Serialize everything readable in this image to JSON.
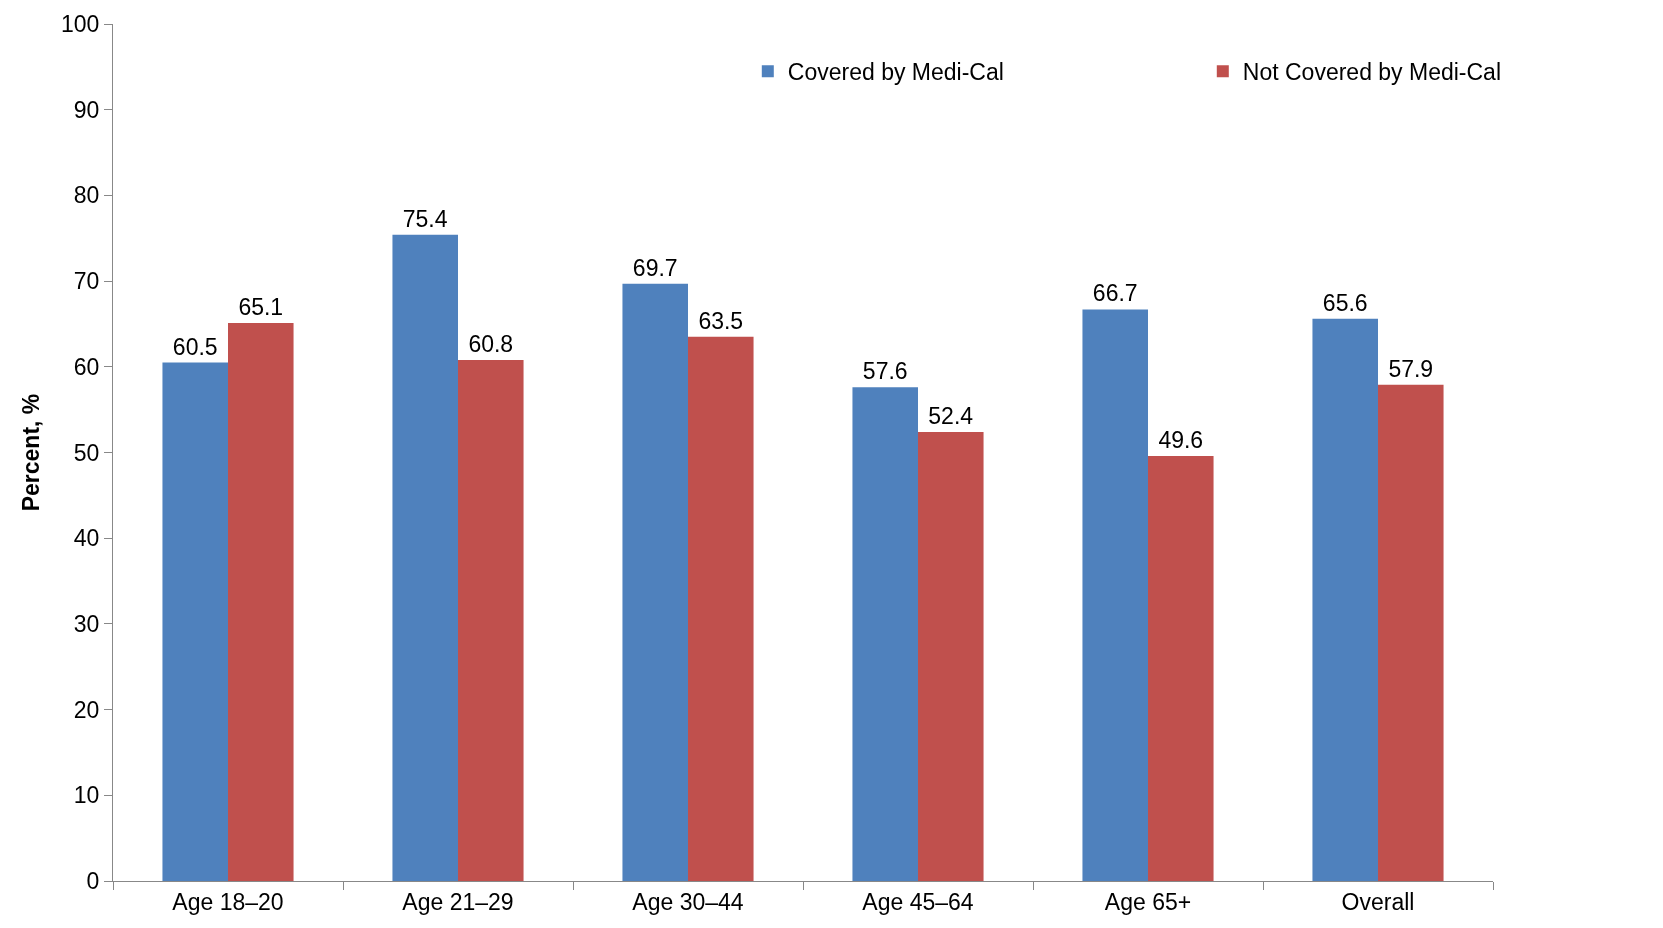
{
  "chart_data": {
    "type": "bar",
    "ylabel": "Percent, %",
    "categories": [
      "Age 18–20",
      "Age 21–29",
      "Age 30–44",
      "Age 45–64",
      "Age 65+",
      "Overall"
    ],
    "series": [
      {
        "name": "Covered by Medi-Cal",
        "color": "#4f81bd",
        "values": [
          60.5,
          75.4,
          69.7,
          57.6,
          66.7,
          65.6
        ]
      },
      {
        "name": "Not Covered by Medi-Cal",
        "color": "#c0504d",
        "values": [
          65.1,
          60.8,
          63.5,
          52.4,
          49.6,
          57.9
        ]
      }
    ],
    "ylim": [
      0,
      100
    ],
    "yticks": [
      0,
      10,
      20,
      30,
      40,
      50,
      60,
      70,
      80,
      90,
      100
    ],
    "grid": false,
    "legend": "top right",
    "data_labels": true
  }
}
